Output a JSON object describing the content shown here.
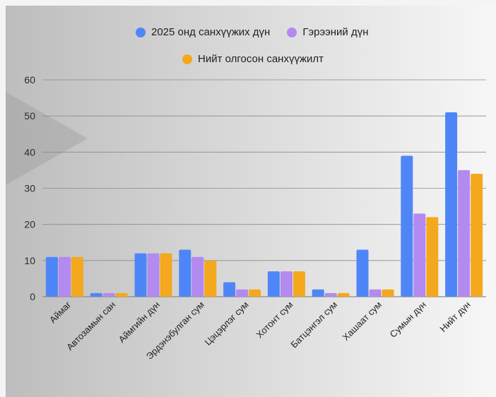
{
  "colors": {
    "series1": "#4f86f7",
    "series2": "#b28af0",
    "series3": "#f4a81e",
    "grid": "#8a8a8a"
  },
  "chart_data": {
    "type": "bar",
    "categories": [
      "Аймаг",
      "Автозамын сан",
      "Аймгийн дүн",
      "Эрдэнэбулган сум",
      "Цэцэрлэг сум",
      "Хотонт сум",
      "Батцэнгэл сум",
      "Хашаат сум",
      "Сумын дүн",
      "Нийт дүн"
    ],
    "series": [
      {
        "name": "2025 онд санхүүжих дүн",
        "values": [
          11,
          1,
          12,
          13,
          4,
          7,
          2,
          13,
          39,
          51
        ]
      },
      {
        "name": "Гэрээний дүн",
        "values": [
          11,
          1,
          12,
          11,
          2,
          7,
          1,
          2,
          23,
          35
        ]
      },
      {
        "name": "Нийт олгосон санхүүжилт",
        "values": [
          11,
          1,
          12,
          10,
          2,
          7,
          1,
          2,
          22,
          34
        ]
      }
    ],
    "ylim": [
      0,
      60
    ],
    "yticks": [
      0,
      10,
      20,
      30,
      40,
      50,
      60
    ],
    "grid": true,
    "legend_position": "top"
  }
}
